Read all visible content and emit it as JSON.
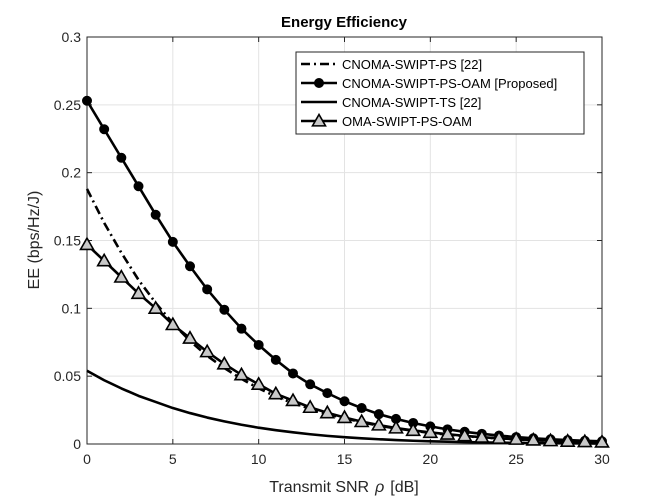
{
  "chart_data": {
    "type": "line",
    "title": "Energy Efficiency",
    "xlabel": "Transmit SNR",
    "xlabel_symbol": "ρ",
    "xlabel_unit": "[dB]",
    "ylabel": "EE (bps/Hz/J)",
    "xlim": [
      0,
      30
    ],
    "ylim": [
      0,
      0.3
    ],
    "xticks": [
      0,
      5,
      10,
      15,
      20,
      25,
      30
    ],
    "yticks": [
      0,
      0.05,
      0.1,
      0.15,
      0.2,
      0.25,
      0.3
    ],
    "xtick_labels": [
      "0",
      "5",
      "10",
      "15",
      "20",
      "25",
      "30"
    ],
    "ytick_labels": [
      "0",
      "0.05",
      "0.1",
      "0.15",
      "0.2",
      "0.25",
      "0.3"
    ],
    "grid": true,
    "legend_position": "top-right",
    "x": [
      0,
      1,
      2,
      3,
      4,
      5,
      6,
      7,
      8,
      9,
      10,
      11,
      12,
      13,
      14,
      15,
      16,
      17,
      18,
      19,
      20,
      21,
      22,
      23,
      24,
      25,
      26,
      27,
      28,
      29,
      30
    ],
    "series": [
      {
        "name": "CNOMA-SWIPT-PS [22]",
        "style": "dashdot",
        "marker": "none",
        "values": [
          0.188,
          0.163,
          0.141,
          0.121,
          0.104,
          0.089,
          0.076,
          0.065,
          0.056,
          0.048,
          0.041,
          0.035,
          0.03,
          0.026,
          0.022,
          0.019,
          0.016,
          0.0135,
          0.0115,
          0.0097,
          0.0082,
          0.0069,
          0.0058,
          0.0049,
          0.0041,
          0.0034,
          0.0028,
          0.0023,
          0.0019,
          0.0016,
          0.0013
        ]
      },
      {
        "name": "CNOMA-SWIPT-PS-OAM [Proposed]",
        "style": "solid",
        "marker": "circle",
        "values": [
          0.253,
          0.232,
          0.211,
          0.19,
          0.169,
          0.149,
          0.131,
          0.114,
          0.099,
          0.085,
          0.073,
          0.062,
          0.052,
          0.044,
          0.0375,
          0.0315,
          0.0265,
          0.022,
          0.0185,
          0.0155,
          0.013,
          0.0108,
          0.009,
          0.0075,
          0.0062,
          0.0051,
          0.0042,
          0.0035,
          0.0029,
          0.0024,
          0.002
        ]
      },
      {
        "name": "CNOMA-SWIPT-TS [22]",
        "style": "solid",
        "marker": "none",
        "values": [
          0.054,
          0.047,
          0.041,
          0.0355,
          0.031,
          0.0265,
          0.0228,
          0.0195,
          0.0167,
          0.0142,
          0.012,
          0.0102,
          0.0086,
          0.0072,
          0.006,
          0.005,
          0.0042,
          0.0035,
          0.0029,
          0.0024,
          0.002,
          0.0017,
          0.0014,
          0.0012,
          0.001,
          0.0008,
          0.0007,
          0.0006,
          0.0005,
          0.0004,
          0.0003
        ]
      },
      {
        "name": "OMA-SWIPT-PS-OAM",
        "style": "solid",
        "marker": "triangle",
        "values": [
          0.147,
          0.135,
          0.123,
          0.111,
          0.1,
          0.088,
          0.078,
          0.068,
          0.059,
          0.051,
          0.044,
          0.037,
          0.032,
          0.027,
          0.023,
          0.0195,
          0.0165,
          0.014,
          0.0118,
          0.01,
          0.0085,
          0.0072,
          0.006,
          0.005,
          0.0042,
          0.0035,
          0.0029,
          0.0024,
          0.002,
          0.0017,
          0.0014
        ]
      }
    ]
  }
}
